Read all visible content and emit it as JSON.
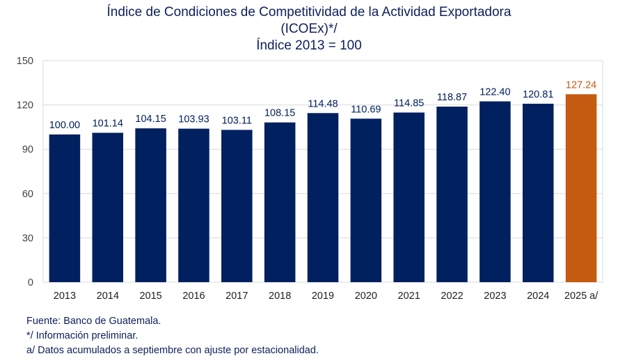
{
  "chart_data": {
    "type": "bar",
    "title": "Índice de Condiciones de Competitividad de la Actividad Exportadora",
    "title_line2": "(ICOEx)*/",
    "subtitle": "Índice 2013 = 100",
    "categories": [
      "2013",
      "2014",
      "2015",
      "2016",
      "2017",
      "2018",
      "2019",
      "2020",
      "2021",
      "2022",
      "2023",
      "2024",
      "2025 a/"
    ],
    "values": [
      100.0,
      101.14,
      104.15,
      103.93,
      103.11,
      108.15,
      114.48,
      110.69,
      114.85,
      118.87,
      122.4,
      120.81,
      127.24
    ],
    "value_labels": [
      "100.00",
      "101.14",
      "104.15",
      "103.93",
      "103.11",
      "108.15",
      "114.48",
      "110.69",
      "114.85",
      "118.87",
      "122.40",
      "120.81",
      "127.24"
    ],
    "ylim": [
      0,
      150
    ],
    "yticks": [
      0,
      30,
      60,
      90,
      120,
      150
    ],
    "xlabel": "",
    "ylabel": "",
    "grid": true,
    "colors": {
      "bar": "#002060",
      "highlight": "#c55a11",
      "grid": "#d9d9d9",
      "axis_text": "#404040"
    },
    "highlight_index": 12
  },
  "notes": [
    "Fuente: Banco de Guatemala.",
    "*/ Información preliminar.",
    "a/ Datos acumulados a septiembre con ajuste por estacionalidad."
  ]
}
